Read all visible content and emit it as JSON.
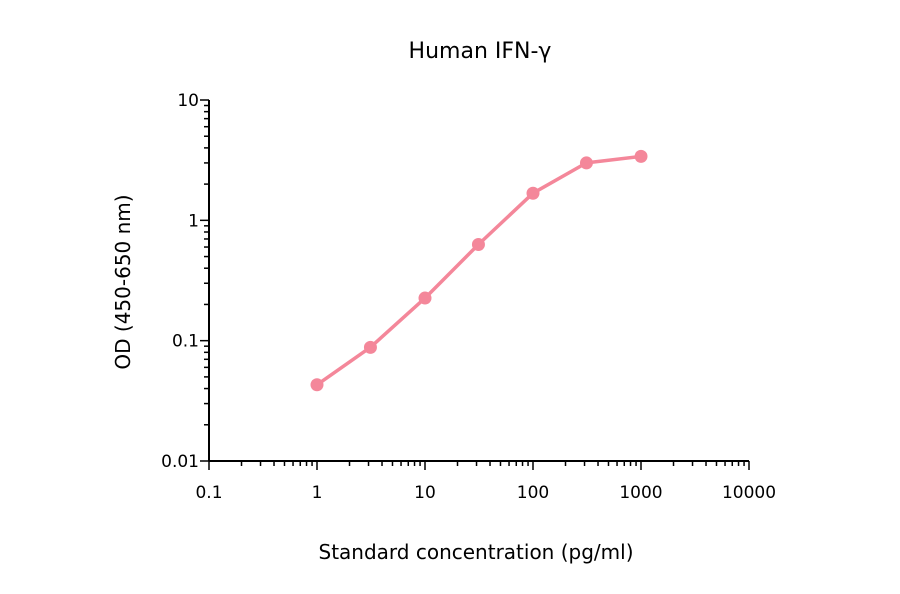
{
  "chart_data": {
    "type": "line",
    "title": "Human IFN-γ",
    "xlabel": "Standard concentration (pg/ml)",
    "ylabel": "OD (450-650 nm)",
    "x_scale": "log",
    "y_scale": "log",
    "xlim": [
      0.1,
      10000
    ],
    "ylim": [
      0.01,
      10
    ],
    "x_ticks": [
      0.1,
      1,
      10,
      100,
      1000,
      10000
    ],
    "x_tick_labels": [
      "0.1",
      "1",
      "10",
      "100",
      "1000",
      "10000"
    ],
    "y_ticks": [
      0.01,
      0.1,
      1,
      10
    ],
    "y_tick_labels": [
      "0.01",
      "0.1",
      "1",
      "10"
    ],
    "grid": false,
    "series": [
      {
        "color": "#f4879a",
        "marker": "circle",
        "x": [
          1,
          3.125,
          10,
          31.25,
          100,
          312.5,
          1000
        ],
        "y": [
          0.043,
          0.088,
          0.226,
          0.63,
          1.68,
          3.0,
          3.4
        ]
      }
    ]
  }
}
